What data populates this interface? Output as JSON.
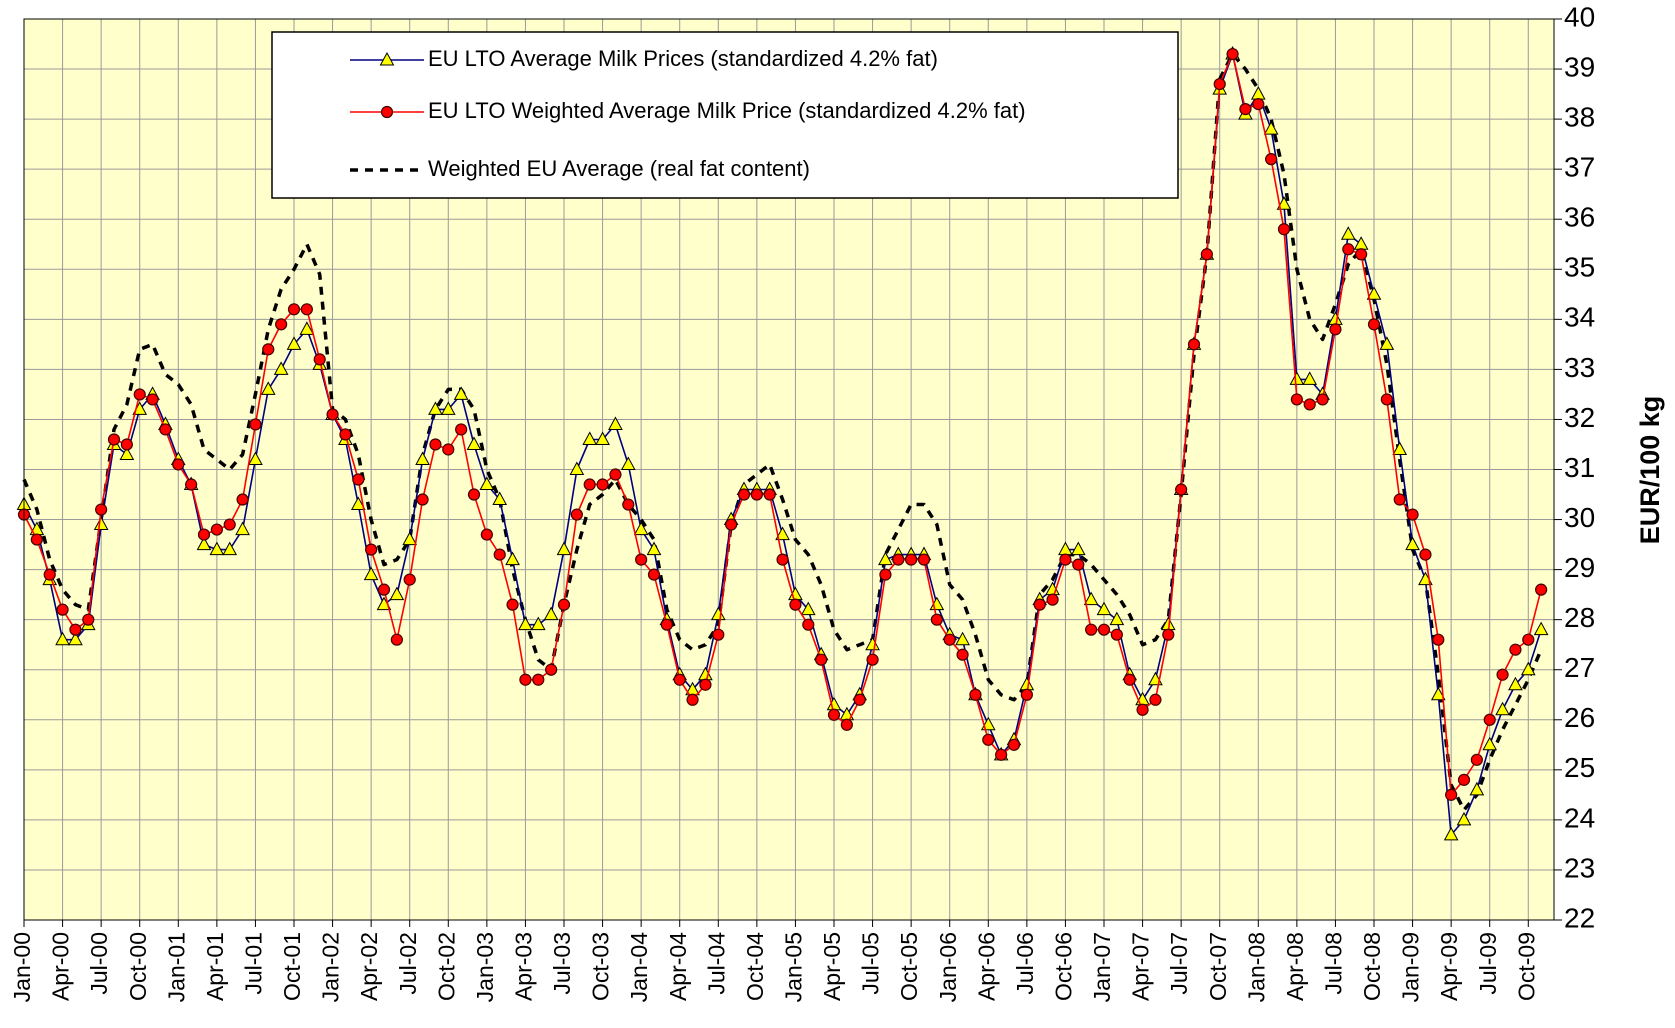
{
  "chart_data": {
    "type": "line",
    "y_label": "EUR/100 kg",
    "categories": [
      "Jan-00",
      null,
      null,
      "Apr-00",
      null,
      null,
      "Jul-00",
      null,
      null,
      "Oct-00",
      null,
      null,
      "Jan-01",
      null,
      null,
      "Apr-01",
      null,
      null,
      "Jul-01",
      null,
      null,
      "Oct-01",
      null,
      null,
      "Jan-02",
      null,
      null,
      "Apr-02",
      null,
      null,
      "Jul-02",
      null,
      null,
      "Oct-02",
      null,
      null,
      "Jan-03",
      null,
      null,
      "Apr-03",
      null,
      null,
      "Jul-03",
      null,
      null,
      "Oct-03",
      null,
      null,
      "Jan-04",
      null,
      null,
      "Apr-04",
      null,
      null,
      "Jul-04",
      null,
      null,
      "Oct-04",
      null,
      null,
      "Jan-05",
      null,
      null,
      "Apr-05",
      null,
      null,
      "Jul-05",
      null,
      null,
      "Oct-05",
      null,
      null,
      "Jan-06",
      null,
      null,
      "Apr-06",
      null,
      null,
      "Jul-06",
      null,
      null,
      "Oct-06",
      null,
      null,
      "Jan-07",
      null,
      null,
      "Apr-07",
      null,
      null,
      "Jul-07",
      null,
      null,
      "Oct-07",
      null,
      null,
      "Jan-08",
      null,
      null,
      "Apr-08",
      null,
      null,
      "Jul-08",
      null,
      null,
      "Oct-08",
      null,
      null,
      "Jan-09",
      null,
      null,
      "Apr-09",
      null,
      null,
      "Jul-09",
      null,
      null,
      "Oct-09",
      null
    ],
    "series": [
      {
        "name": "EU LTO Average Milk Prices (standardized 4.2% fat)",
        "color": "#000080",
        "marker": "triangle",
        "marker_color": "#ffff00",
        "values": [
          30.3,
          29.8,
          28.8,
          27.6,
          27.6,
          27.9,
          29.9,
          31.5,
          31.3,
          32.2,
          32.5,
          31.9,
          31.2,
          30.7,
          29.5,
          29.4,
          29.4,
          29.8,
          31.2,
          32.6,
          33.0,
          33.5,
          33.8,
          33.1,
          32.1,
          31.6,
          30.3,
          28.9,
          28.3,
          28.5,
          29.6,
          31.2,
          32.2,
          32.2,
          32.5,
          31.5,
          30.7,
          30.4,
          29.2,
          27.9,
          27.9,
          28.1,
          29.4,
          31.0,
          31.6,
          31.6,
          31.9,
          31.1,
          29.8,
          29.4,
          28.0,
          26.9,
          26.6,
          26.9,
          28.1,
          30.0,
          30.6,
          30.6,
          30.6,
          29.7,
          28.5,
          28.2,
          27.3,
          26.3,
          26.1,
          26.5,
          27.5,
          29.2,
          29.3,
          29.3,
          29.3,
          28.3,
          27.7,
          27.6,
          26.5,
          25.9,
          25.3,
          25.6,
          26.7,
          28.4,
          28.6,
          29.4,
          29.4,
          28.4,
          28.2,
          28.0,
          26.9,
          26.4,
          26.8,
          27.9,
          30.6,
          33.5,
          35.3,
          38.6,
          39.3,
          38.1,
          38.5,
          37.8,
          36.3,
          32.8,
          32.8,
          32.5,
          34.0,
          35.7,
          35.5,
          34.5,
          33.5,
          31.4,
          29.5,
          28.8,
          26.5,
          23.7,
          24.0,
          24.6,
          25.5,
          26.2,
          26.7,
          27.0,
          27.8
        ]
      },
      {
        "name": "EU LTO Weighted Average  Milk Price (standardized 4.2% fat)",
        "color": "#ff0000",
        "marker": "circle",
        "marker_color": "#ff0000",
        "values": [
          30.1,
          29.6,
          28.9,
          28.2,
          27.8,
          28.0,
          30.2,
          31.6,
          31.5,
          32.5,
          32.4,
          31.8,
          31.1,
          30.7,
          29.7,
          29.8,
          29.9,
          30.4,
          31.9,
          33.4,
          33.9,
          34.2,
          34.2,
          33.2,
          32.1,
          31.7,
          30.8,
          29.4,
          28.6,
          27.6,
          28.8,
          30.4,
          31.5,
          31.4,
          31.8,
          30.5,
          29.7,
          29.3,
          28.3,
          26.8,
          26.8,
          27.0,
          28.3,
          30.1,
          30.7,
          30.7,
          30.9,
          30.3,
          29.2,
          28.9,
          27.9,
          26.8,
          26.4,
          26.7,
          27.7,
          29.9,
          30.5,
          30.5,
          30.5,
          29.2,
          28.3,
          27.9,
          27.2,
          26.1,
          25.9,
          26.4,
          27.2,
          28.9,
          29.2,
          29.2,
          29.2,
          28.0,
          27.6,
          27.3,
          26.5,
          25.6,
          25.3,
          25.5,
          26.5,
          28.3,
          28.4,
          29.2,
          29.1,
          27.8,
          27.8,
          27.7,
          26.8,
          26.2,
          26.4,
          27.7,
          30.6,
          33.5,
          35.3,
          38.7,
          39.3,
          38.2,
          38.3,
          37.2,
          35.8,
          32.4,
          32.3,
          32.4,
          33.8,
          35.4,
          35.3,
          33.9,
          32.4,
          30.4,
          30.1,
          29.3,
          27.6,
          24.5,
          24.8,
          25.2,
          26.0,
          26.9,
          27.4,
          27.6,
          28.6
        ]
      },
      {
        "name": "Weighted EU Average (real fat content)",
        "color": "#000000",
        "dash": true,
        "values": [
          30.8,
          30.2,
          29.2,
          28.6,
          28.3,
          28.2,
          30.0,
          31.8,
          32.3,
          33.4,
          33.5,
          32.9,
          32.7,
          32.3,
          31.4,
          31.2,
          31.0,
          31.3,
          32.5,
          33.8,
          34.6,
          35.0,
          35.5,
          34.9,
          32.2,
          32.0,
          31.3,
          30.0,
          29.1,
          29.2,
          29.6,
          31.3,
          32.2,
          32.6,
          32.6,
          32.2,
          31.0,
          30.4,
          29.0,
          28.0,
          27.2,
          27.0,
          28.3,
          29.4,
          30.3,
          30.5,
          30.8,
          30.3,
          30.0,
          29.6,
          28.2,
          27.6,
          27.4,
          27.5,
          27.9,
          29.9,
          30.7,
          30.9,
          31.1,
          30.4,
          29.6,
          29.3,
          28.7,
          27.8,
          27.4,
          27.5,
          27.6,
          29.3,
          29.8,
          30.3,
          30.3,
          29.9,
          28.7,
          28.4,
          27.7,
          26.8,
          26.5,
          26.4,
          26.7,
          28.5,
          28.8,
          29.3,
          29.3,
          29.1,
          28.8,
          28.5,
          28.1,
          27.5,
          27.6,
          28.0,
          30.5,
          33.3,
          35.3,
          38.8,
          39.3,
          39.0,
          38.6,
          38.0,
          36.9,
          35.0,
          34.0,
          33.6,
          34.3,
          35.1,
          35.4,
          34.4,
          33.1,
          31.2,
          29.4,
          28.8,
          26.9,
          24.7,
          24.2,
          24.5,
          25.2,
          25.8,
          26.3,
          26.8,
          27.4
        ]
      }
    ],
    "ylim": [
      22,
      40
    ],
    "yticks": [
      22,
      23,
      24,
      25,
      26,
      27,
      28,
      29,
      30,
      31,
      32,
      33,
      34,
      35,
      36,
      37,
      38,
      39,
      40
    ],
    "y_axis_side": "right",
    "grid": true,
    "background": "#ffffcc",
    "legend": "top"
  }
}
